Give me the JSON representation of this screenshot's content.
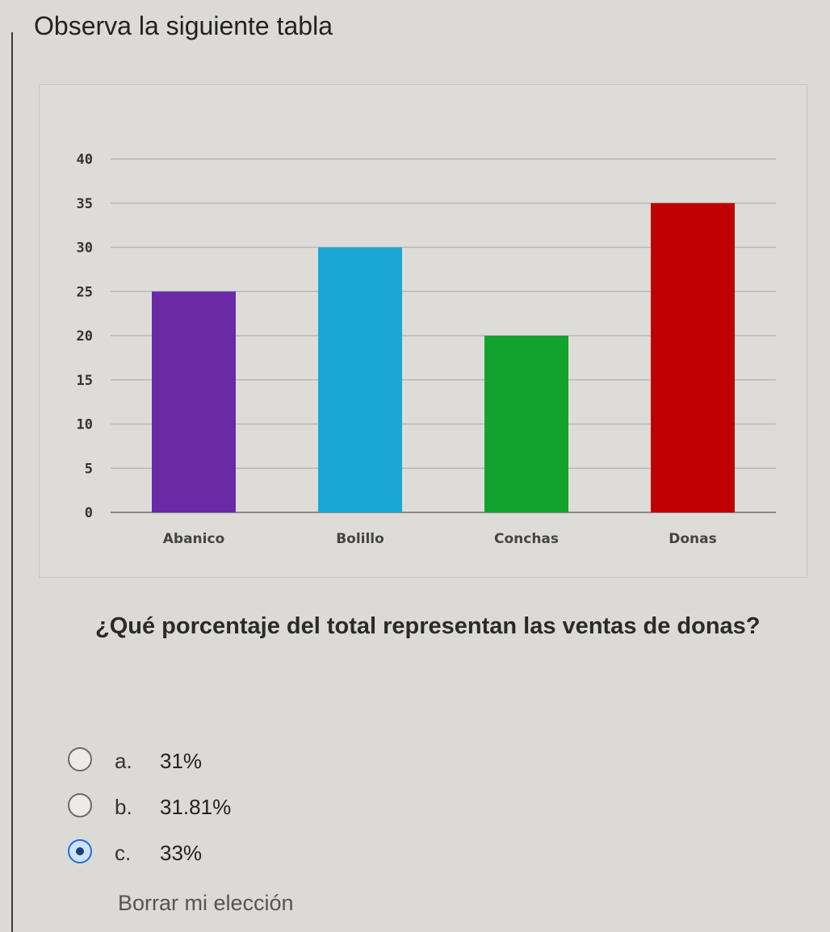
{
  "intro": "Observa la siguiente tabla",
  "question": "¿Qué porcentaje del total representan las ventas de donas?",
  "options": [
    {
      "letter": "a.",
      "text": "31%",
      "selected": false
    },
    {
      "letter": "b.",
      "text": "31.81%",
      "selected": false
    },
    {
      "letter": "c.",
      "text": "33%",
      "selected": true
    }
  ],
  "clear_label": "Borrar mi elección",
  "chart_data": {
    "type": "bar",
    "categories": [
      "Abanico",
      "Bolillo",
      "Conchas",
      "Donas"
    ],
    "values": [
      25,
      30,
      20,
      35
    ],
    "colors": [
      "#6a2aa6",
      "#1aa7d6",
      "#12a32f",
      "#c00000"
    ],
    "ylim": [
      0,
      40
    ],
    "yticks": [
      "0",
      "5",
      "10",
      "15",
      "20",
      "25",
      "30",
      "35",
      "40"
    ],
    "grid": true,
    "legend": "none",
    "title": "",
    "xlabel": "",
    "ylabel": ""
  }
}
